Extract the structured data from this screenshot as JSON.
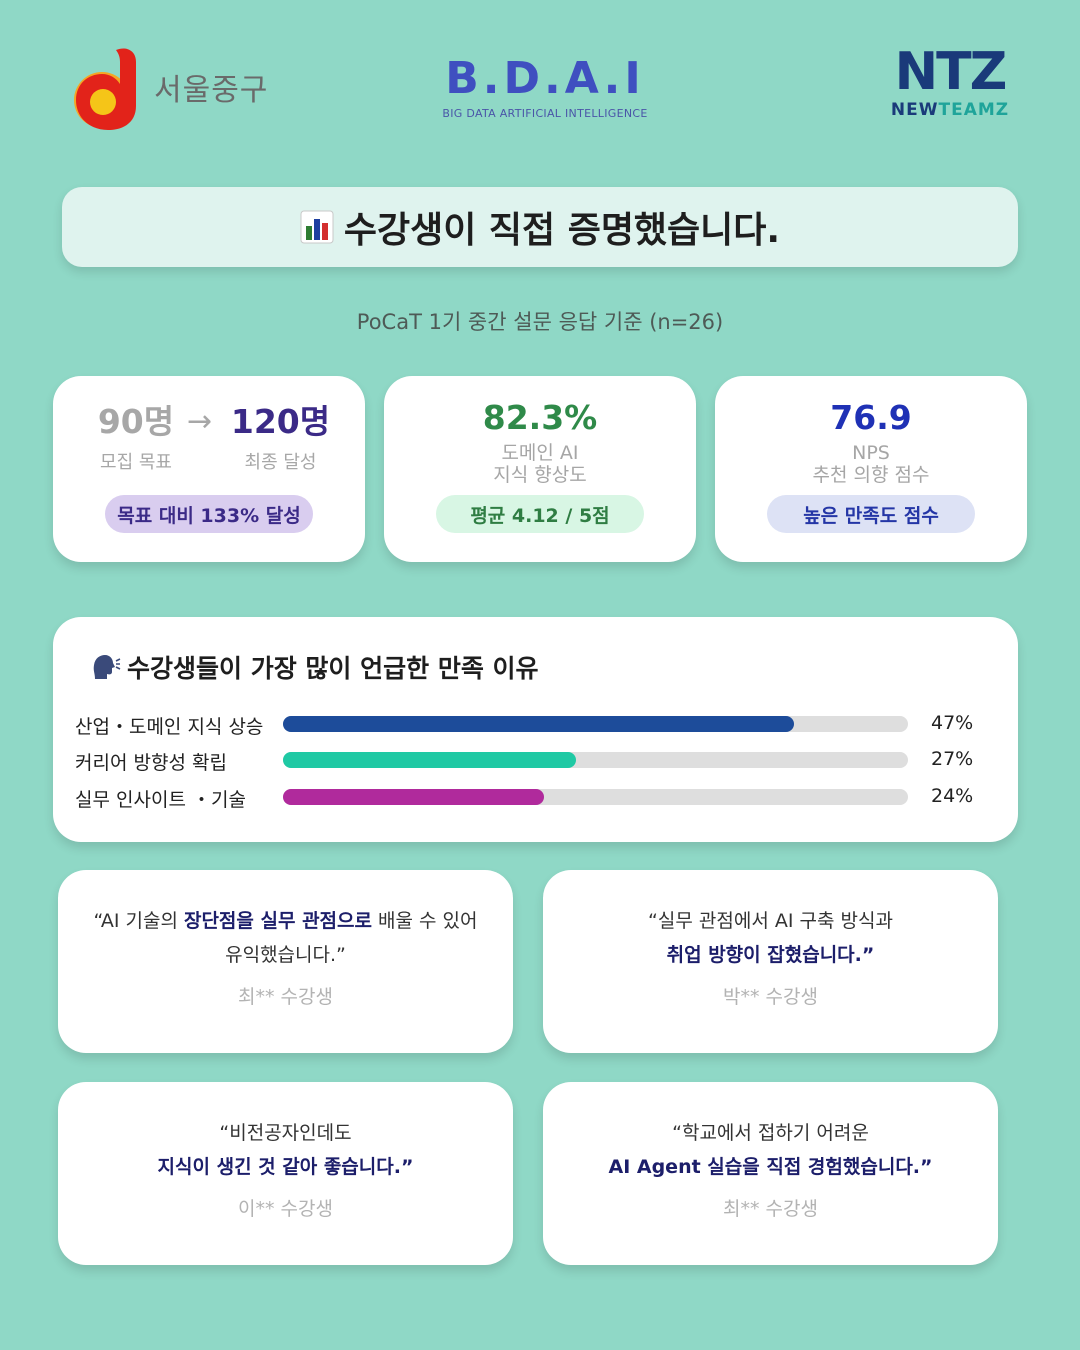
{
  "header": {
    "seoul_logo_text": "서울중구",
    "bdai_logo_text": "B.D.A.I",
    "bdai_logo_sub": "BIG DATA ARTIFICIAL INTELLIGENCE",
    "ntz_logo_text": "NTZ",
    "ntz_logo_sub_1": "NEW",
    "ntz_logo_sub_2": "TEAMZ"
  },
  "title": {
    "icon": "bar-chart-icon",
    "text": "수강생이 직접 증명했습니다."
  },
  "subtitle": "PoCaT 1기 중간 설문 응답 기준 (n=26)",
  "stats": {
    "recruit": {
      "target_value": "90명",
      "target_label": "모집 목표",
      "arrow": "→",
      "final_value": "120명",
      "final_label": "최종 달성",
      "badge": "목표 대비 133% 달성"
    },
    "domain": {
      "value": "82.3%",
      "line1": "도메인 AI",
      "line2": "지식 향상도",
      "badge": "평균 4.12 / 5점"
    },
    "nps": {
      "value": "76.9",
      "line1": "NPS",
      "line2": "추천 의향 점수",
      "badge": "높은 만족도 점수"
    }
  },
  "reasons": {
    "icon": "speaking-head-icon",
    "title": "수강생들이 가장 많이 언급한 만족 이유",
    "items": [
      {
        "label": "산업・도메인 지식 상승",
        "percent": 47,
        "percent_label": "47%",
        "color": "#1d4c9a"
      },
      {
        "label": "커리어 방향성 확립",
        "percent": 27,
        "percent_label": "27%",
        "color": "#1fc9a4"
      },
      {
        "label": "실무 인사이트 ・기술",
        "percent": 24,
        "percent_label": "24%",
        "color": "#b02a9c"
      }
    ]
  },
  "quotes": [
    {
      "l1a": "“AI 기술의 ",
      "l1b": "장단점을 실무 관점으로",
      "l1c": " 배울 수 있어",
      "l2a": "유익했습니다.”",
      "l2b": "",
      "author": "최** 수강생"
    },
    {
      "l1a": "“실무 관점에서 AI 구축 방식과",
      "l1b": "",
      "l1c": "",
      "l2a": "",
      "l2b": "취업 방향이 잡혔습니다.”",
      "author": "박** 수강생"
    },
    {
      "l1a": "“비전공자인데도",
      "l1b": "",
      "l1c": "",
      "l2a": "",
      "l2b": "지식이 생긴 것 같아 좋습니다.”",
      "author": "이** 수강생"
    },
    {
      "l1a": "“학교에서 접하기 어려운",
      "l1b": "",
      "l1c": "",
      "l2a": "",
      "l2b": "AI Agent 실습을 직접 경험했습니다.”",
      "author": "최** 수강생"
    }
  ]
}
